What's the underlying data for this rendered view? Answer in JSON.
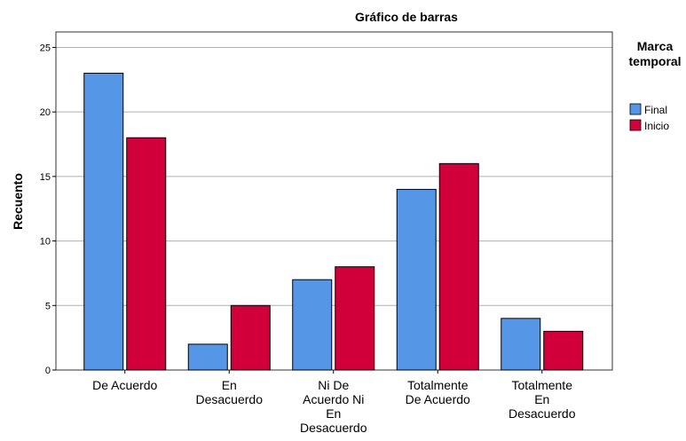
{
  "chart_data": {
    "type": "bar",
    "title": "Gráfico de barras",
    "y_label": "Recuento",
    "categories": [
      "De Acuerdo",
      "En Desacuerdo",
      "Ni De Acuerdo Ni En Desacuerdo",
      "Totalmente De Acuerdo",
      "Totalmente En Desacuerdo"
    ],
    "series": [
      {
        "name": "Final",
        "color": "#5596e6",
        "values": [
          23,
          2,
          7,
          14,
          4
        ]
      },
      {
        "name": "Inicio",
        "color": "#d2003a",
        "values": [
          18,
          5,
          8,
          16,
          3
        ]
      }
    ],
    "legend_title": "Marca temporal",
    "ylim": [
      0,
      26.2
    ],
    "yticks": [
      0,
      5,
      10,
      15,
      20,
      25
    ],
    "grid": true
  }
}
